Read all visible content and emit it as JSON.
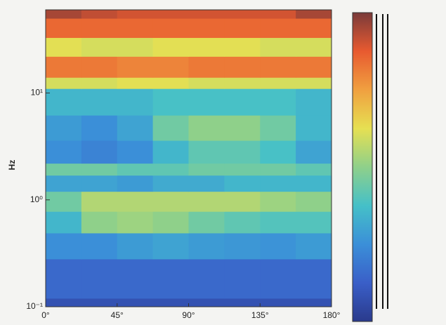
{
  "chart_data": {
    "type": "heatmap",
    "y_label": "Hz",
    "log_y": true,
    "xlim": [
      0,
      180
    ],
    "ylim": [
      0.1,
      60
    ],
    "zlim": [
      0,
      1
    ],
    "xticks": [
      {
        "value": 0,
        "label": "0°"
      },
      {
        "value": 45,
        "label": "45°"
      },
      {
        "value": 90,
        "label": "90°"
      },
      {
        "value": 135,
        "label": "135°"
      },
      {
        "value": 180,
        "label": "180°"
      }
    ],
    "yticks": [
      {
        "value": 0.1,
        "label": "10⁻¹"
      },
      {
        "value": 1,
        "label": "10⁰"
      },
      {
        "value": 10,
        "label": "10¹"
      }
    ],
    "x_edges": [
      0,
      22.5,
      45,
      67.5,
      90,
      112.5,
      135,
      157.5,
      180
    ],
    "y_edges": [
      0.1,
      0.12,
      0.28,
      0.49,
      0.78,
      1.2,
      1.7,
      2.2,
      3.6,
      6.2,
      11,
      14,
      22,
      33,
      50,
      60
    ],
    "values": [
      [
        0.08,
        0.08,
        0.08,
        0.08,
        0.08,
        0.08,
        0.08,
        0.08
      ],
      [
        0.15,
        0.15,
        0.15,
        0.15,
        0.15,
        0.15,
        0.15,
        0.15
      ],
      [
        0.25,
        0.25,
        0.28,
        0.3,
        0.28,
        0.27,
        0.26,
        0.28
      ],
      [
        0.35,
        0.5,
        0.52,
        0.5,
        0.45,
        0.42,
        0.4,
        0.4
      ],
      [
        0.45,
        0.55,
        0.55,
        0.55,
        0.55,
        0.55,
        0.52,
        0.5
      ],
      [
        0.3,
        0.3,
        0.28,
        0.32,
        0.32,
        0.35,
        0.35,
        0.35
      ],
      [
        0.45,
        0.45,
        0.42,
        0.42,
        0.45,
        0.45,
        0.45,
        0.42
      ],
      [
        0.25,
        0.22,
        0.25,
        0.35,
        0.42,
        0.42,
        0.38,
        0.3
      ],
      [
        0.28,
        0.25,
        0.3,
        0.45,
        0.5,
        0.5,
        0.45,
        0.35
      ],
      [
        0.35,
        0.35,
        0.35,
        0.38,
        0.38,
        0.38,
        0.38,
        0.35
      ],
      [
        0.6,
        0.6,
        0.62,
        0.62,
        0.6,
        0.6,
        0.6,
        0.6
      ],
      [
        0.82,
        0.82,
        0.8,
        0.8,
        0.82,
        0.82,
        0.82,
        0.82
      ],
      [
        0.62,
        0.6,
        0.6,
        0.62,
        0.62,
        0.62,
        0.6,
        0.6
      ],
      [
        0.85,
        0.85,
        0.85,
        0.85,
        0.85,
        0.85,
        0.85,
        0.85
      ],
      [
        0.95,
        0.92,
        0.9,
        0.9,
        0.9,
        0.9,
        0.9,
        0.95
      ]
    ],
    "colormap": [
      "#2a3a8c",
      "#3a5fc8",
      "#3b8fd8",
      "#45c0c8",
      "#8fd08a",
      "#e6e052",
      "#f0a040",
      "#e85a30",
      "#7a3a3a"
    ]
  }
}
